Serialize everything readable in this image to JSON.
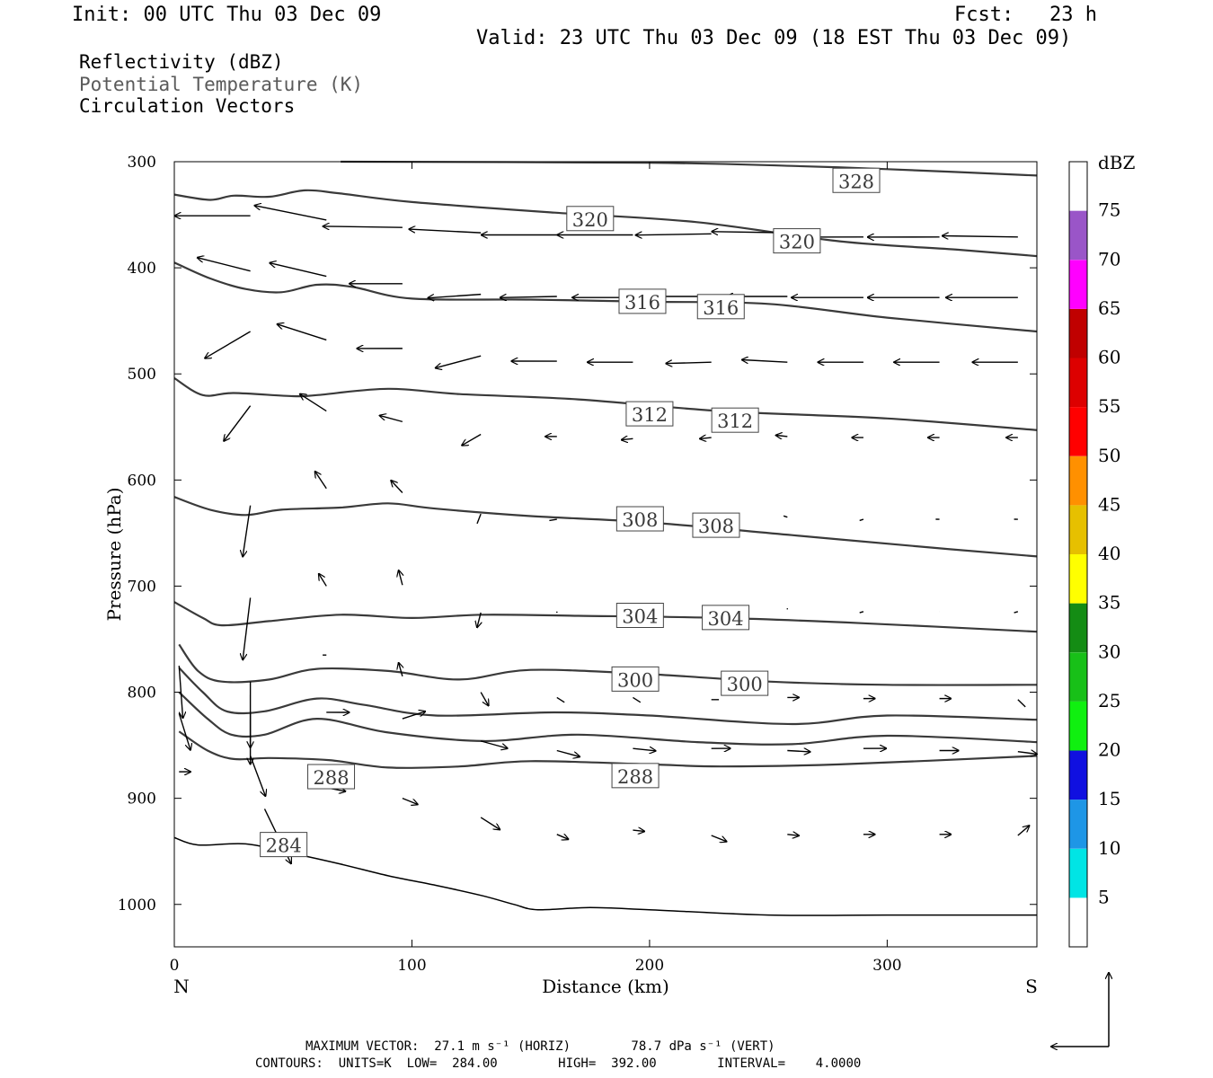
{
  "header": {
    "init": "Init: 00 UTC Thu 03 Dec 09",
    "fcst": "Fcst:   23 h",
    "valid": "Valid: 23 UTC Thu 03 Dec 09 (18 EST Thu 03 Dec 09)"
  },
  "legend_lines": [
    "Reflectivity (dBZ)",
    "Potential Temperature (K)",
    "Circulation Vectors"
  ],
  "footer": {
    "line1": "MAXIMUM VECTOR:  27.1 m s⁻¹ (HORIZ)        78.7 dPa s⁻¹ (VERT)",
    "line2": "CONTOURS:  UNITS=K  LOW=  284.00        HIGH=  392.00        INTERVAL=    4.0000"
  },
  "colors": {
    "contour": "#3a3a3a",
    "vector": "#000000",
    "ground": "#000000"
  },
  "chart_data": {
    "type": "cross-section",
    "xlabel": "Distance (km)",
    "ylabel": "Pressure (hPa)",
    "xlim": [
      0,
      363
    ],
    "ylim": [
      300,
      1040
    ],
    "y_inverted": true,
    "x_ticks": [
      0,
      100,
      200,
      300
    ],
    "y_ticks": [
      300,
      400,
      500,
      600,
      700,
      800,
      900,
      1000
    ],
    "end_labels": {
      "left": "N",
      "right": "S"
    },
    "colorbar": {
      "title": "dBZ",
      "levels": [
        {
          "label": "",
          "color": "#ffffff"
        },
        {
          "label": "5",
          "color": "#00e5e5"
        },
        {
          "label": "10",
          "color": "#1e96e6"
        },
        {
          "label": "15",
          "color": "#1010e0"
        },
        {
          "label": "20",
          "color": "#10f010"
        },
        {
          "label": "25",
          "color": "#18c018"
        },
        {
          "label": "30",
          "color": "#148c14"
        },
        {
          "label": "35",
          "color": "#ffff00"
        },
        {
          "label": "40",
          "color": "#e6c000"
        },
        {
          "label": "45",
          "color": "#ff9000"
        },
        {
          "label": "50",
          "color": "#ff0000"
        },
        {
          "label": "55",
          "color": "#dd0000"
        },
        {
          "label": "60",
          "color": "#c00000"
        },
        {
          "label": "65",
          "color": "#ff00ff"
        },
        {
          "label": "70",
          "color": "#9a55c8"
        },
        {
          "label": "75",
          "color": "#ffffff"
        }
      ]
    },
    "theta_contours": [
      {
        "points": [
          [
            70,
            300
          ],
          [
            200,
            301
          ],
          [
            260,
            304
          ],
          [
            300,
            307
          ],
          [
            363,
            313
          ]
        ]
      },
      {
        "points": [
          [
            0,
            331
          ],
          [
            15,
            336
          ],
          [
            25,
            332
          ],
          [
            40,
            333
          ],
          [
            55,
            327
          ],
          [
            70,
            330
          ],
          [
            100,
            338
          ],
          [
            160,
            348
          ],
          [
            220,
            357
          ],
          [
            280,
            375
          ],
          [
            330,
            383
          ],
          [
            363,
            389
          ]
        ]
      },
      {
        "points": [
          [
            0,
            395
          ],
          [
            15,
            410
          ],
          [
            30,
            420
          ],
          [
            45,
            423
          ],
          [
            60,
            416
          ],
          [
            75,
            418
          ],
          [
            100,
            429
          ],
          [
            150,
            430
          ],
          [
            200,
            432
          ],
          [
            250,
            434
          ],
          [
            300,
            447
          ],
          [
            363,
            460
          ]
        ]
      },
      {
        "points": [
          [
            0,
            504
          ],
          [
            12,
            520
          ],
          [
            25,
            518
          ],
          [
            50,
            521
          ],
          [
            60,
            520
          ],
          [
            90,
            514
          ],
          [
            120,
            519
          ],
          [
            170,
            524
          ],
          [
            230,
            535
          ],
          [
            300,
            542
          ],
          [
            363,
            553
          ]
        ]
      },
      {
        "points": [
          [
            0,
            616
          ],
          [
            15,
            628
          ],
          [
            30,
            633
          ],
          [
            45,
            628
          ],
          [
            70,
            626
          ],
          [
            90,
            622
          ],
          [
            110,
            627
          ],
          [
            150,
            634
          ],
          [
            200,
            640
          ],
          [
            260,
            652
          ],
          [
            320,
            664
          ],
          [
            363,
            672
          ]
        ]
      },
      {
        "points": [
          [
            0,
            715
          ],
          [
            12,
            730
          ],
          [
            20,
            737
          ],
          [
            40,
            733
          ],
          [
            70,
            727
          ],
          [
            100,
            730
          ],
          [
            130,
            727
          ],
          [
            170,
            728
          ],
          [
            230,
            730
          ],
          [
            290,
            735
          ],
          [
            363,
            743
          ]
        ]
      },
      {
        "points": [
          [
            2,
            755
          ],
          [
            10,
            780
          ],
          [
            20,
            790
          ],
          [
            40,
            788
          ],
          [
            60,
            778
          ],
          [
            90,
            780
          ],
          [
            120,
            788
          ],
          [
            150,
            779
          ],
          [
            200,
            783
          ],
          [
            250,
            790
          ],
          [
            300,
            793
          ],
          [
            363,
            793
          ]
        ]
      },
      {
        "points": [
          [
            2,
            777
          ],
          [
            12,
            800
          ],
          [
            22,
            818
          ],
          [
            38,
            818
          ],
          [
            60,
            806
          ],
          [
            80,
            812
          ],
          [
            110,
            822
          ],
          [
            160,
            819
          ],
          [
            200,
            822
          ],
          [
            260,
            830
          ],
          [
            300,
            822
          ],
          [
            363,
            826
          ]
        ]
      },
      {
        "points": [
          [
            2,
            800
          ],
          [
            14,
            825
          ],
          [
            24,
            840
          ],
          [
            38,
            840
          ],
          [
            60,
            825
          ],
          [
            90,
            838
          ],
          [
            130,
            846
          ],
          [
            170,
            840
          ],
          [
            220,
            847
          ],
          [
            260,
            849
          ],
          [
            300,
            841
          ],
          [
            363,
            847
          ]
        ]
      },
      {
        "points": [
          [
            2,
            837
          ],
          [
            14,
            855
          ],
          [
            25,
            863
          ],
          [
            40,
            862
          ],
          [
            65,
            864
          ],
          [
            90,
            871
          ],
          [
            120,
            870
          ],
          [
            150,
            865
          ],
          [
            200,
            868
          ],
          [
            230,
            870
          ],
          [
            280,
            868
          ],
          [
            363,
            860
          ]
        ]
      }
    ],
    "theta_labels": [
      {
        "x": 287,
        "p": 318,
        "value": "328"
      },
      {
        "x": 175,
        "p": 354,
        "value": "320"
      },
      {
        "x": 262,
        "p": 375,
        "value": "320"
      },
      {
        "x": 197,
        "p": 432,
        "value": "316"
      },
      {
        "x": 230,
        "p": 437,
        "value": "316"
      },
      {
        "x": 200,
        "p": 538,
        "value": "312"
      },
      {
        "x": 236,
        "p": 544,
        "value": "312"
      },
      {
        "x": 196,
        "p": 637,
        "value": "308"
      },
      {
        "x": 228,
        "p": 643,
        "value": "308"
      },
      {
        "x": 196,
        "p": 728,
        "value": "304"
      },
      {
        "x": 232,
        "p": 730,
        "value": "304"
      },
      {
        "x": 194,
        "p": 788,
        "value": "300"
      },
      {
        "x": 240,
        "p": 792,
        "value": "300"
      },
      {
        "x": 66,
        "p": 880,
        "value": "288"
      },
      {
        "x": 194,
        "p": 879,
        "value": "288"
      },
      {
        "x": 46,
        "p": 944,
        "value": "284"
      }
    ],
    "terrain_surface": [
      [
        0,
        937
      ],
      [
        10,
        944
      ],
      [
        30,
        943
      ],
      [
        50,
        952
      ],
      [
        70,
        962
      ],
      [
        90,
        973
      ],
      [
        110,
        982
      ],
      [
        130,
        992
      ],
      [
        143,
        1000
      ],
      [
        153,
        1005
      ],
      [
        175,
        1003
      ],
      [
        200,
        1005
      ],
      [
        250,
        1010
      ],
      [
        300,
        1010
      ],
      [
        363,
        1010
      ]
    ],
    "circulation_vectors": [
      {
        "x": 32,
        "p": 351,
        "u": -20,
        "w": 0
      },
      {
        "x": 64,
        "p": 355,
        "u": -19,
        "w": -12
      },
      {
        "x": 96,
        "p": 362,
        "u": -21,
        "w": -1
      },
      {
        "x": 129,
        "p": 367,
        "u": -19,
        "w": -3
      },
      {
        "x": 161,
        "p": 369,
        "u": -20,
        "w": 0
      },
      {
        "x": 193,
        "p": 369,
        "u": -20,
        "w": 0
      },
      {
        "x": 226,
        "p": 368,
        "u": -20,
        "w": 1
      },
      {
        "x": 258,
        "p": 367,
        "u": -20,
        "w": -1
      },
      {
        "x": 290,
        "p": 371,
        "u": -19,
        "w": 0
      },
      {
        "x": 322,
        "p": 371,
        "u": -19,
        "w": 0
      },
      {
        "x": 355,
        "p": 371,
        "u": -20,
        "w": -1
      },
      {
        "x": 32,
        "p": 403,
        "u": -14,
        "w": -11
      },
      {
        "x": 64,
        "p": 408,
        "u": -15,
        "w": -11
      },
      {
        "x": 96,
        "p": 415,
        "u": -14,
        "w": 0
      },
      {
        "x": 129,
        "p": 425,
        "u": -14,
        "w": 3
      },
      {
        "x": 161,
        "p": 427,
        "u": -15,
        "w": 1
      },
      {
        "x": 193,
        "p": 428,
        "u": -16,
        "w": 0
      },
      {
        "x": 226,
        "p": 427,
        "u": -16,
        "w": 0
      },
      {
        "x": 258,
        "p": 427,
        "u": -16,
        "w": 0
      },
      {
        "x": 290,
        "p": 428,
        "u": -19,
        "w": 0
      },
      {
        "x": 322,
        "p": 428,
        "u": -19,
        "w": 0
      },
      {
        "x": 355,
        "p": 428,
        "u": -19,
        "w": 0
      },
      {
        "x": 32,
        "p": 460,
        "u": -12,
        "w": 22
      },
      {
        "x": 64,
        "p": 468,
        "u": -13,
        "w": -13
      },
      {
        "x": 96,
        "p": 476,
        "u": -12,
        "w": 0
      },
      {
        "x": 129,
        "p": 483,
        "u": -12,
        "w": 10
      },
      {
        "x": 161,
        "p": 488,
        "u": -12,
        "w": 0
      },
      {
        "x": 193,
        "p": 489,
        "u": -12,
        "w": 0
      },
      {
        "x": 226,
        "p": 489,
        "u": -12,
        "w": 1
      },
      {
        "x": 258,
        "p": 489,
        "u": -12,
        "w": -2
      },
      {
        "x": 290,
        "p": 489,
        "u": -12,
        "w": 0
      },
      {
        "x": 322,
        "p": 489,
        "u": -12,
        "w": 0
      },
      {
        "x": 355,
        "p": 489,
        "u": -12,
        "w": 0
      },
      {
        "x": 32,
        "p": 530,
        "u": -7,
        "w": 29
      },
      {
        "x": 64,
        "p": 535,
        "u": -7,
        "w": -14
      },
      {
        "x": 96,
        "p": 545,
        "u": -6,
        "w": -5
      },
      {
        "x": 129,
        "p": 557,
        "u": -5,
        "w": 9
      },
      {
        "x": 161,
        "p": 559,
        "u": -3,
        "w": 0
      },
      {
        "x": 193,
        "p": 561,
        "u": -3,
        "w": 1
      },
      {
        "x": 226,
        "p": 560,
        "u": -3,
        "w": 1
      },
      {
        "x": 258,
        "p": 559,
        "u": -3,
        "w": -1
      },
      {
        "x": 290,
        "p": 560,
        "u": -3,
        "w": 0
      },
      {
        "x": 322,
        "p": 560,
        "u": -3,
        "w": 0
      },
      {
        "x": 355,
        "p": 560,
        "u": -3,
        "w": 0
      },
      {
        "x": 32,
        "p": 624,
        "u": -2,
        "w": 42
      },
      {
        "x": 64,
        "p": 608,
        "u": -3,
        "w": -14
      },
      {
        "x": 96,
        "p": 612,
        "u": -3,
        "w": -10
      },
      {
        "x": 129,
        "p": 632,
        "u": -1,
        "w": 8
      },
      {
        "x": 161,
        "p": 637,
        "u": -2,
        "w": 1
      },
      {
        "x": 193,
        "p": 641,
        "u": -2,
        "w": 1
      },
      {
        "x": 226,
        "p": 642,
        "u": -2,
        "w": 2
      },
      {
        "x": 258,
        "p": 635,
        "u": -1,
        "w": -1
      },
      {
        "x": 290,
        "p": 637,
        "u": -1,
        "w": 1
      },
      {
        "x": 322,
        "p": 637,
        "u": -1,
        "w": 0
      },
      {
        "x": 355,
        "p": 637,
        "u": -1,
        "w": 0
      },
      {
        "x": 32,
        "p": 711,
        "u": -2,
        "w": 51
      },
      {
        "x": 64,
        "p": 700,
        "u": -2,
        "w": -10
      },
      {
        "x": 96,
        "p": 699,
        "u": -1,
        "w": -12
      },
      {
        "x": 129,
        "p": 725,
        "u": -1,
        "w": 12
      },
      {
        "x": 161,
        "p": 724,
        "u": 0,
        "w": 1
      },
      {
        "x": 193,
        "p": 725,
        "u": 0,
        "w": 1
      },
      {
        "x": 226,
        "p": 727,
        "u": 0,
        "w": 0
      },
      {
        "x": 258,
        "p": 722,
        "u": 0,
        "w": -1
      },
      {
        "x": 290,
        "p": 724,
        "u": -1,
        "w": 1
      },
      {
        "x": 322,
        "p": 724,
        "u": 0,
        "w": 0
      },
      {
        "x": 355,
        "p": 724,
        "u": -1,
        "w": 1
      },
      {
        "x": 2,
        "p": 775,
        "u": 1,
        "w": 43
      },
      {
        "x": 32,
        "p": 790,
        "u": 0,
        "w": 68
      },
      {
        "x": 64,
        "p": 765,
        "u": -1,
        "w": 0
      },
      {
        "x": 96,
        "p": 785,
        "u": -1,
        "w": -11
      },
      {
        "x": 129,
        "p": 800,
        "u": 2,
        "w": 11
      },
      {
        "x": 161,
        "p": 805,
        "u": 2,
        "w": 4
      },
      {
        "x": 193,
        "p": 805,
        "u": 2,
        "w": 4
      },
      {
        "x": 226,
        "p": 807,
        "u": 2,
        "w": 0
      },
      {
        "x": 258,
        "p": 805,
        "u": 3,
        "w": 0
      },
      {
        "x": 290,
        "p": 806,
        "u": 3,
        "w": 0
      },
      {
        "x": 322,
        "p": 806,
        "u": 3,
        "w": 0
      },
      {
        "x": 355,
        "p": 807,
        "u": 2,
        "w": 6
      },
      {
        "x": 2,
        "p": 820,
        "u": 3,
        "w": 30
      },
      {
        "x": 32,
        "p": 820,
        "u": 0,
        "w": 28
      },
      {
        "x": 64,
        "p": 819,
        "u": 6,
        "w": 0
      },
      {
        "x": 96,
        "p": 825,
        "u": 6,
        "w": -6
      },
      {
        "x": 129,
        "p": 846,
        "u": 7,
        "w": 6
      },
      {
        "x": 161,
        "p": 855,
        "u": 6,
        "w": 5
      },
      {
        "x": 193,
        "p": 853,
        "u": 6,
        "w": 2
      },
      {
        "x": 226,
        "p": 853,
        "u": 5,
        "w": 0
      },
      {
        "x": 258,
        "p": 855,
        "u": 6,
        "w": 1
      },
      {
        "x": 290,
        "p": 853,
        "u": 6,
        "w": 0
      },
      {
        "x": 322,
        "p": 855,
        "u": 5,
        "w": 0
      },
      {
        "x": 355,
        "p": 856,
        "u": 5,
        "w": 2
      },
      {
        "x": 2,
        "p": 875,
        "u": 3,
        "w": 0
      },
      {
        "x": 32,
        "p": 860,
        "u": 4,
        "w": 33
      },
      {
        "x": 64,
        "p": 890,
        "u": 5,
        "w": 3
      },
      {
        "x": 96,
        "p": 900,
        "u": 4,
        "w": 5
      },
      {
        "x": 129,
        "p": 918,
        "u": 5,
        "w": 10
      },
      {
        "x": 161,
        "p": 934,
        "u": 3,
        "w": 4
      },
      {
        "x": 193,
        "p": 930,
        "u": 3,
        "w": 1
      },
      {
        "x": 226,
        "p": 935,
        "u": 4,
        "w": 5
      },
      {
        "x": 258,
        "p": 934,
        "u": 3,
        "w": 1
      },
      {
        "x": 290,
        "p": 934,
        "u": 3,
        "w": 0
      },
      {
        "x": 322,
        "p": 934,
        "u": 3,
        "w": 0
      },
      {
        "x": 355,
        "p": 935,
        "u": 3,
        "w": -8
      },
      {
        "x": 38,
        "p": 910,
        "u": 7,
        "w": 45
      }
    ]
  }
}
